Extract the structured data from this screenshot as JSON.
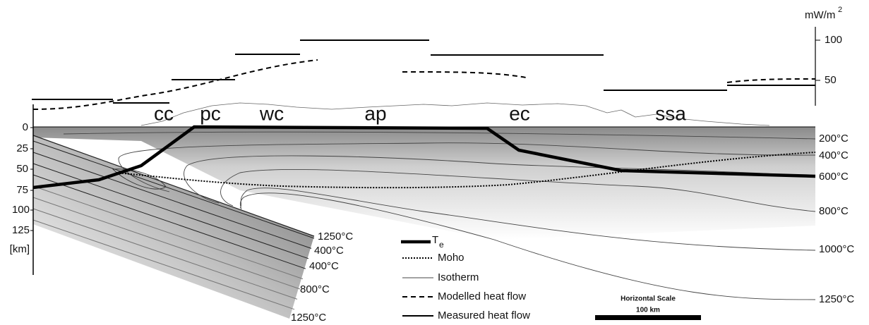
{
  "heat_flow_axis": {
    "unit": "mW/m",
    "unit_superscript": "2",
    "ticks": [
      "100",
      "50"
    ]
  },
  "depth_axis": {
    "ticks": [
      "0",
      "25",
      "50",
      "75",
      "100",
      "125"
    ],
    "unit": "[km]"
  },
  "regions": [
    "cc",
    "pc",
    "wc",
    "ap",
    "ec",
    "ssa"
  ],
  "isotherm_labels": [
    "200°C",
    "400°C",
    "600°C",
    "800°C",
    "1000°C",
    "1250°C"
  ],
  "slab_labels": [
    "1250°C",
    "400°C",
    "400°C",
    "800°C",
    "1250°C"
  ],
  "legend": {
    "te": {
      "symbol": "T",
      "subscript": "e"
    },
    "items": [
      "Moho",
      "Isotherm",
      "Modelled heat flow",
      "Measured heat flow"
    ]
  },
  "scale": {
    "title": "Horizontal Scale",
    "length": "100 km"
  }
}
